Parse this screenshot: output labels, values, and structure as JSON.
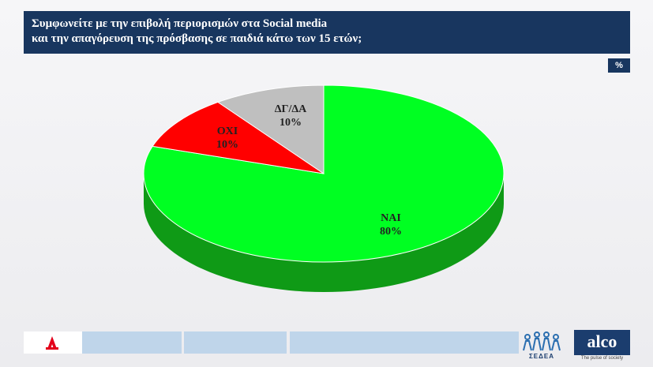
{
  "header": {
    "title_line1": "Συμφωνείτε με την επιβολή περιορισμών στα Social media",
    "title_line2": "και την απαγόρευση της πρόσβασης σε παιδιά κάτω των 15 ετών;",
    "unit": "%"
  },
  "chart_data": {
    "type": "pie",
    "labels": [
      "ΝΑΙ",
      "ΟΧΙ",
      "ΔΓ/ΔΑ"
    ],
    "values": [
      80,
      10,
      10
    ],
    "value_labels": [
      "80%",
      "10%",
      "10%"
    ],
    "colors": [
      "#00ff22",
      "#ff0000",
      "#bfbfbf"
    ],
    "side_colors": [
      "#0f9a16",
      "#a00000",
      "#8a8a8a"
    ],
    "three_d": true
  },
  "footer": {
    "logo_left_icon": "alpha-tv-logo-icon",
    "sedea_label": "ΣΕΔΕΑ",
    "sedea_icon": "people-group-icon",
    "alco_label": "alco",
    "alco_tagline": "The pulse of society"
  }
}
